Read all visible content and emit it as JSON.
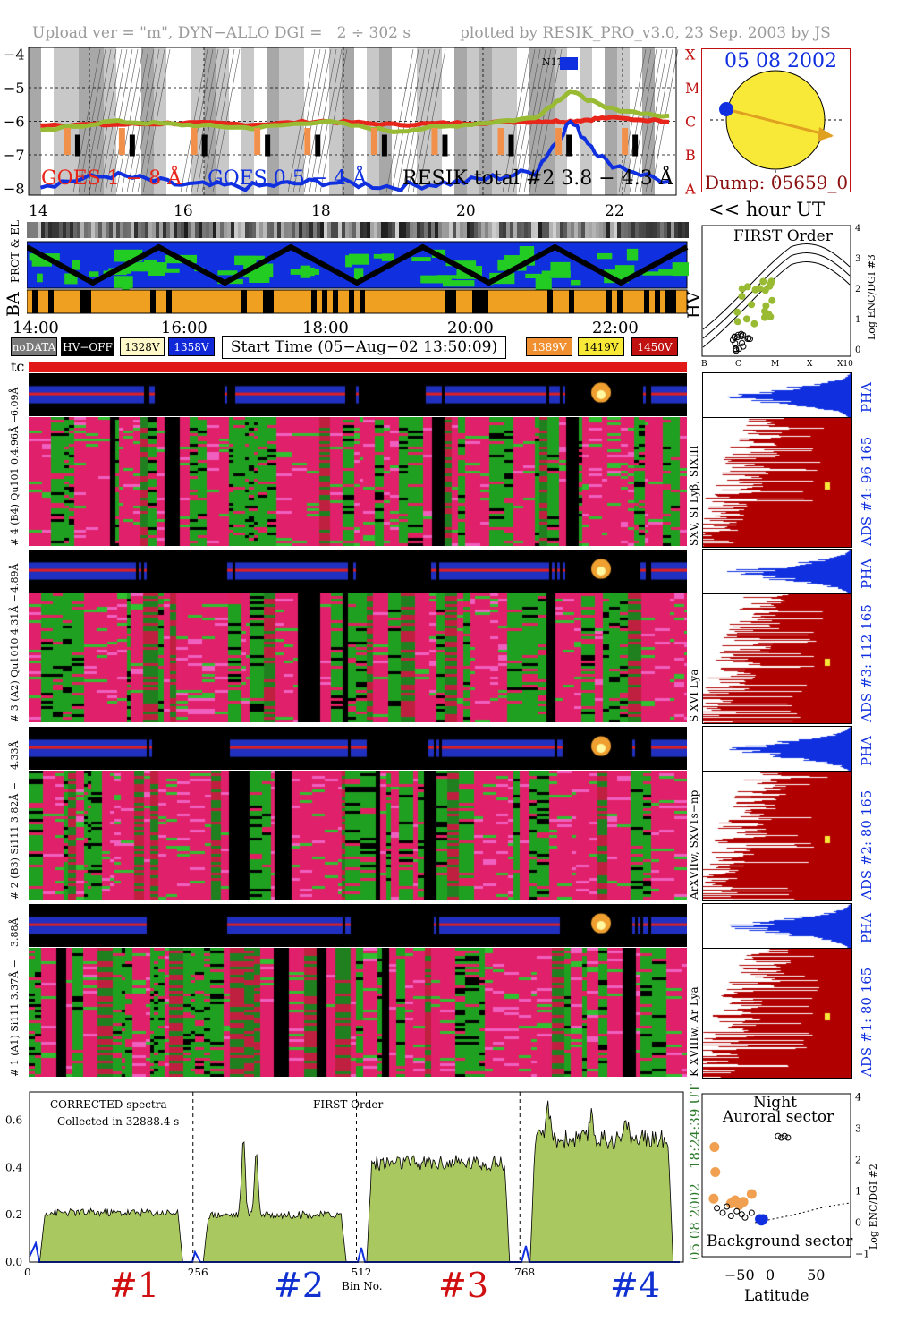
{
  "header": {
    "left": "Upload ver = \"m\", DYN−ALLO DGI =   2 ÷ 302 s",
    "right": "plotted by RESIK_PRO_v3.0, 23 Sep. 2003 by JS"
  },
  "goes_panel": {
    "yticks": [
      "−4",
      "−5",
      "−6",
      "−7",
      "−8"
    ],
    "flare_classes": [
      "X",
      "M",
      "C",
      "B",
      "A"
    ],
    "legend_goes_long": "GOES 1 − 8 Å",
    "legend_goes_short": "GOES 0.5 − 4 Å",
    "legend_resik": "RESIK total #2 3.8 − 4.3 Å",
    "noaa_region": "N1739",
    "colors": {
      "goes_long": "#e8251a",
      "goes_short": "#1030e0",
      "resik": "#99bb33",
      "flare_dots": "#f0904a"
    }
  },
  "sun_panel": {
    "date": "05 08 2002",
    "dump": "Dump: 05659_0"
  },
  "hour_axis": {
    "ticks": [
      "14",
      "16",
      "18",
      "20",
      "22"
    ],
    "label": "<< hour UT"
  },
  "orbit_labels": {
    "prot_el": "PROT & EL",
    "ba": "BA",
    "hv": "HV"
  },
  "time_axis": {
    "ticks": [
      "14:00",
      "16:00",
      "18:00",
      "20:00",
      "22:00"
    ]
  },
  "legend_chips": [
    {
      "label": "noDATA",
      "bg": "#7a7a7a",
      "fg": "#ffffff"
    },
    {
      "label": "HV−OFF",
      "bg": "#000000",
      "fg": "#ffffff"
    },
    {
      "label": "1328V",
      "bg": "#fff8c8",
      "fg": "#000000"
    },
    {
      "label": "1358V",
      "bg": "#1028d8",
      "fg": "#ffffff"
    },
    {
      "label": "1389V",
      "bg": "#f09030",
      "fg": "#ffffff"
    },
    {
      "label": "1419V",
      "bg": "#f8e838",
      "fg": "#000000"
    },
    {
      "label": "1450V",
      "bg": "#c01010",
      "fg": "#ffffff"
    }
  ],
  "start_time": "Start Time (05−Aug−02 13:50:09)",
  "tc_label": "tc",
  "first_order_panel": {
    "title": "FIRST Order",
    "ylabel": "Log ENC/DGI #3",
    "yticks": [
      "4",
      "3",
      "2",
      "1",
      "0"
    ],
    "xticks": [
      "B",
      "C",
      "M",
      "X",
      "X10"
    ]
  },
  "detectors": [
    {
      "pha_label": "6.09Å",
      "main_label": "# 4 (B4) Qu101 0.4.96Å −",
      "lines": "SXV, SI Lyβ, SIXIII",
      "ads": "ADS #4:    96 165",
      "pha": "PHA"
    },
    {
      "pha_label": "4.89Å",
      "main_label": "# 3 (A2) Qu1010  4.31Å −",
      "lines": "S XVI Lya",
      "ads": "ADS #3:   112 165",
      "pha": "PHA"
    },
    {
      "pha_label": "4.33Å",
      "main_label": "# 2 (B3) Si111  3.82Å −",
      "lines": "ArXVIIw, SXV1s−np",
      "ads": "ADS #2:    80 165",
      "pha": "PHA"
    },
    {
      "pha_label": "3.88Å",
      "main_label": "# 1 (A1) Si111  3.37Å −",
      "lines": "K XVIIIw, Ar Lya",
      "ads": "ADS #1:    80 165",
      "pha": "PHA"
    }
  ],
  "spectrum_panel": {
    "note1": "CORRECTED spectra",
    "note2": "Collected in 32888.4 s",
    "note3": "FIRST Order",
    "yticks": [
      "0.6",
      "0.4",
      "0.2",
      "0.0"
    ],
    "xticks": [
      "0",
      "256",
      "512",
      "768"
    ],
    "xlabel": "Bin No.",
    "time_label": "18:24:39 UT",
    "date_label": "05 08 2002",
    "big_labels": [
      "#1",
      "#2",
      "#3",
      "#4"
    ],
    "big_colors": [
      "#d01010",
      "#1030d0",
      "#d01010",
      "#1030d0"
    ]
  },
  "latitude_panel": {
    "title1": "Night",
    "title2": "Auroral sector",
    "bottom": "Background sector",
    "xlabel": "Latitude",
    "ylabel": "Log ENC/DGI #2",
    "xticks": [
      "−50",
      "0",
      "50"
    ],
    "yticks": [
      "4",
      "3",
      "2",
      "1",
      "0",
      "−1"
    ]
  },
  "chart_data": [
    {
      "type": "line",
      "title": "",
      "xlabel": "hour UT",
      "ylabel": "log flux",
      "x_range": [
        13.83,
        23.0
      ],
      "ylim": [
        -8.2,
        -3.8
      ],
      "series": [
        {
          "name": "GOES 1 − 8 Å",
          "x": [
            14,
            15,
            16,
            17,
            18,
            19,
            20,
            21,
            21.5,
            22,
            23
          ],
          "values": [
            -6.1,
            -6.1,
            -6.05,
            -6.1,
            -6.0,
            -6.1,
            -6.05,
            -6.0,
            -6.0,
            -5.9,
            -6.0
          ]
        },
        {
          "name": "GOES 0.5 − 4 Å",
          "x": [
            14,
            15,
            16,
            17,
            18,
            19,
            20,
            21,
            21.5,
            22,
            23
          ],
          "values": [
            -7.9,
            -7.6,
            -7.9,
            -7.95,
            -7.8,
            -7.95,
            -7.8,
            -7.5,
            -6.0,
            -7.2,
            -7.9
          ]
        },
        {
          "name": "RESIK total #2 3.8 − 4.3 Å",
          "x": [
            14,
            15,
            16,
            17,
            18,
            19,
            20,
            21,
            21.5,
            22,
            23
          ],
          "values": [
            -6.3,
            -6.0,
            -6.1,
            -6.2,
            -6.0,
            -6.3,
            -6.1,
            -5.9,
            -5.1,
            -5.6,
            -5.9
          ]
        }
      ]
    },
    {
      "type": "area",
      "title": "",
      "xlabel": "Bin No.",
      "ylabel": "",
      "xlim": [
        0,
        1024
      ],
      "ylim": [
        0,
        0.72
      ],
      "segments": [
        {
          "name": "#1",
          "x_range": [
            16,
            240
          ],
          "level": 0.21
        },
        {
          "name": "#2",
          "x_range": [
            272,
            496
          ],
          "level": 0.2,
          "peaks": [
            [
              335,
              0.52
            ],
            [
              355,
              0.47
            ]
          ]
        },
        {
          "name": "#3",
          "x_range": [
            528,
            752
          ],
          "level": 0.42
        },
        {
          "name": "#4",
          "x_range": [
            784,
            1008
          ],
          "level": 0.52,
          "peaks": [
            [
              812,
              0.68
            ],
            [
              880,
              0.64
            ],
            [
              935,
              0.6
            ]
          ]
        }
      ]
    },
    {
      "type": "scatter",
      "title": "",
      "xlabel": "Latitude",
      "ylabel": "Log ENC/DGI #2",
      "xlim": [
        -90,
        90
      ],
      "ylim": [
        -1.1,
        4.1
      ],
      "series": [
        {
          "name": "",
          "x": [
            -75,
            -74,
            -76,
            -55,
            -50,
            -45,
            -40,
            -30
          ],
          "values": [
            2.4,
            1.6,
            0.75,
            0.6,
            0.7,
            0.55,
            0.65,
            0.9
          ],
          "color": "#f0a050"
        },
        {
          "name": "",
          "x": [
            -72,
            -65,
            -60,
            -55,
            -48,
            -42,
            -38,
            -30
          ],
          "values": [
            0.45,
            0.3,
            0.5,
            0.2,
            0.35,
            0.25,
            0.15,
            0.3
          ],
          "color": "#000000"
        },
        {
          "name": "",
          "x": [
            -20,
            -18,
            -16
          ],
          "values": [
            0.1,
            0.05,
            0.1
          ],
          "color": "#1030e0"
        },
        {
          "name": "",
          "x": [
            2,
            6,
            10,
            14
          ],
          "values": [
            2.75,
            2.7,
            2.75,
            2.7
          ],
          "color": "#000000"
        }
      ]
    }
  ]
}
